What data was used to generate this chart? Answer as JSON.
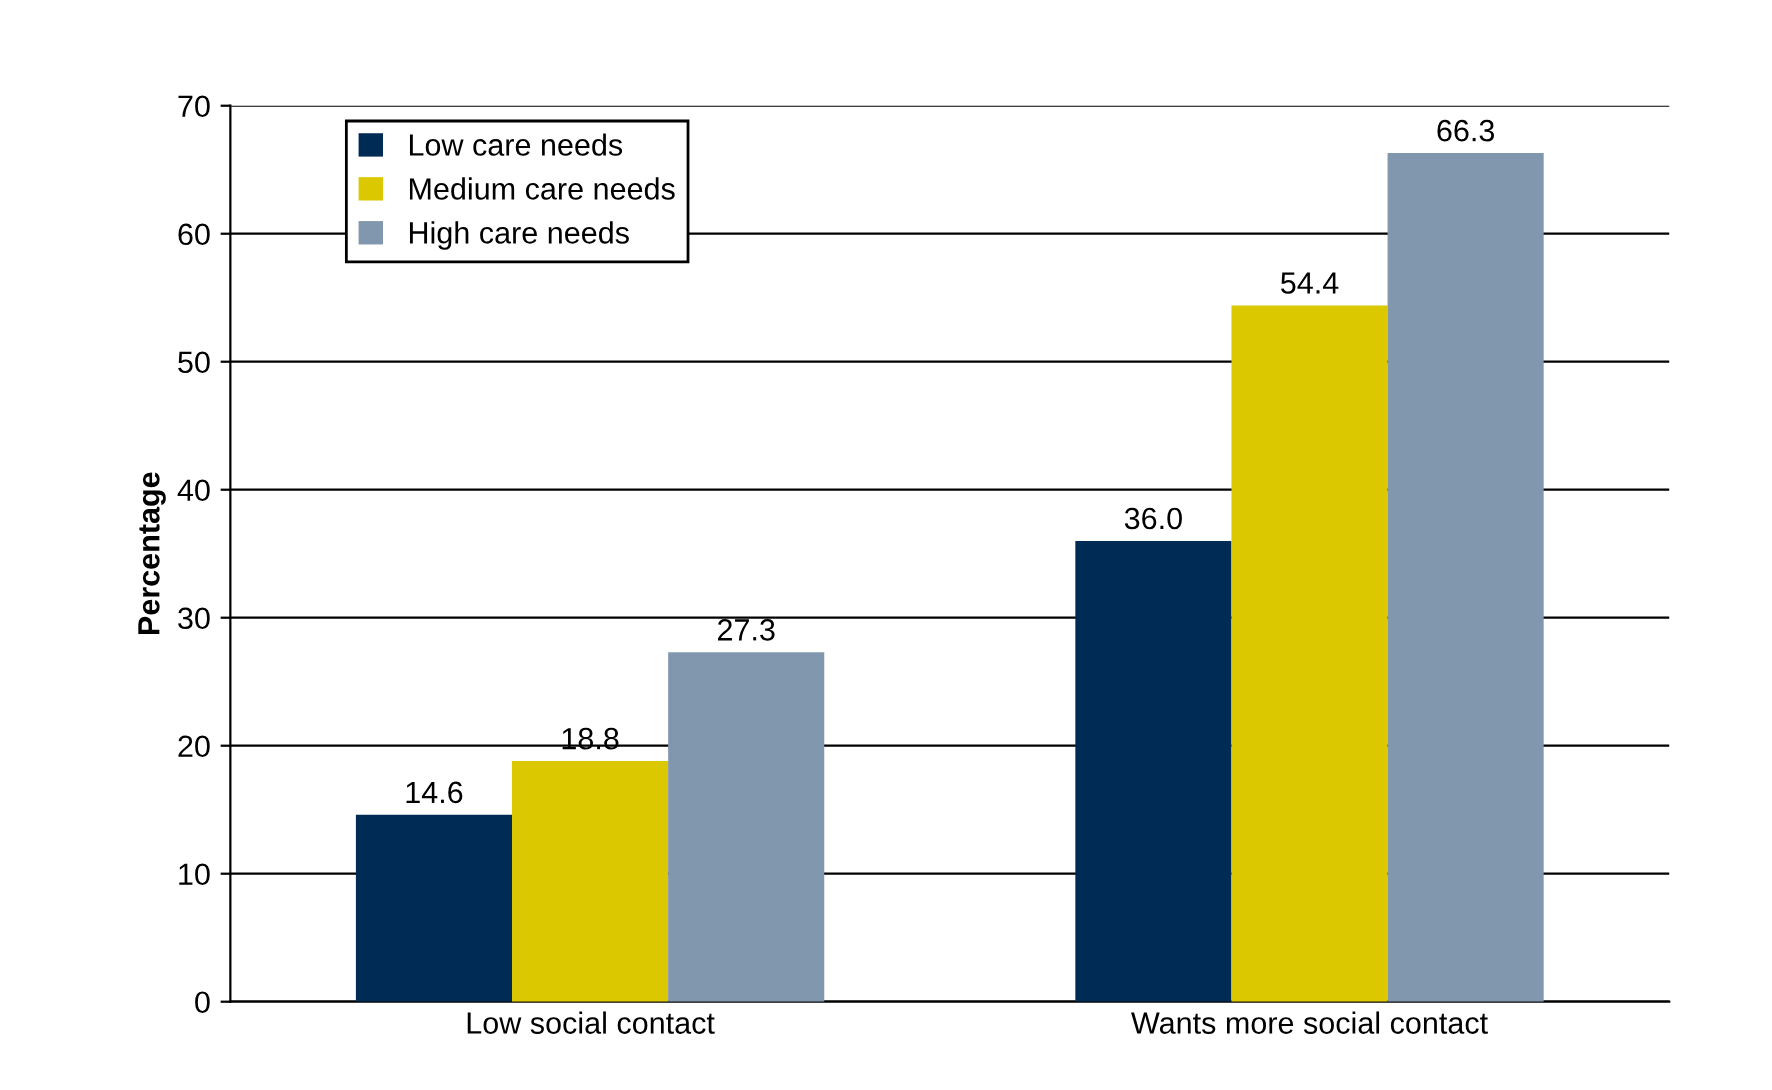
{
  "chart_data": {
    "type": "bar",
    "ylabel": "Percentage",
    "categories": [
      "Low social contact",
      "Wants more social contact"
    ],
    "series": [
      {
        "name": "Low care needs",
        "color": "#002b55",
        "values": [
          14.6,
          36.0
        ],
        "value_labels": [
          "14.6",
          "36.0"
        ]
      },
      {
        "name": "Medium care needs",
        "color": "#dcc800",
        "values": [
          18.8,
          54.4
        ],
        "value_labels": [
          "18.8",
          "54.4"
        ]
      },
      {
        "name": "High care needs",
        "color": "#8097ad",
        "values": [
          27.3,
          66.3
        ],
        "value_labels": [
          "27.3",
          "66.3"
        ]
      }
    ],
    "ylim": [
      0,
      70
    ],
    "yticks": [
      0,
      10,
      20,
      30,
      40,
      50,
      60,
      70
    ],
    "grid": "y",
    "legend": "top left"
  }
}
